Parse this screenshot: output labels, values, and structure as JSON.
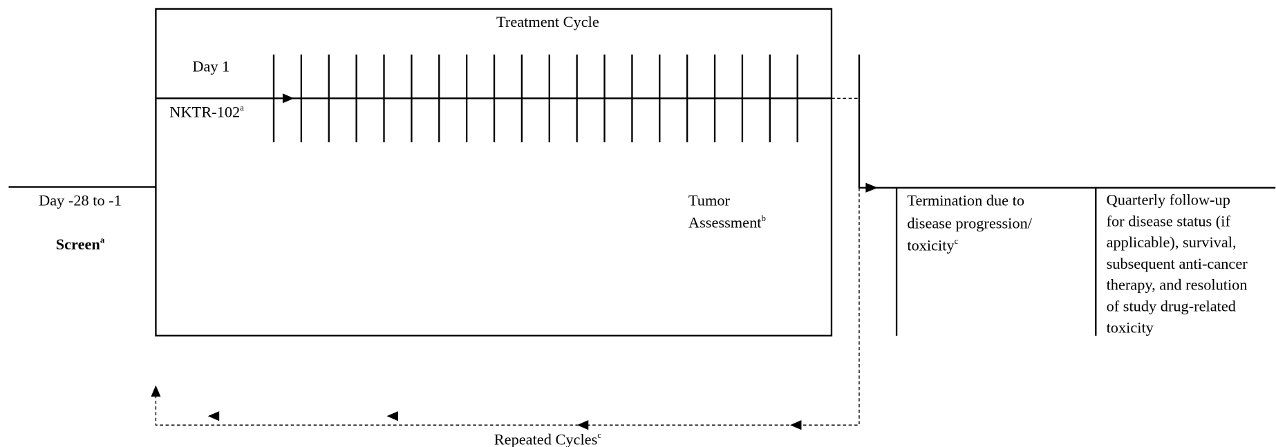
{
  "treatment_cycle": {
    "title": "Treatment Cycle",
    "day_label": "Day 1",
    "drug": "NKTR-102",
    "drug_note": "a"
  },
  "screening": {
    "days": "Day -28 to -1",
    "label": "Screen",
    "note": "a"
  },
  "tumor_assessment": {
    "lines": [
      "Tumor",
      "Assessment"
    ],
    "note": "b"
  },
  "termination": {
    "lines": [
      "Termination due to",
      "disease progression/",
      "toxicity"
    ],
    "note": "c"
  },
  "follow_up": {
    "lines": [
      "Quarterly follow-up",
      "for disease status (if",
      "applicable), survival,",
      "subsequent anti-cancer",
      "therapy, and resolution",
      "of study drug-related",
      "toxicity"
    ]
  },
  "repeated_cycles": {
    "label": "Repeated Cycles",
    "note": "c"
  }
}
